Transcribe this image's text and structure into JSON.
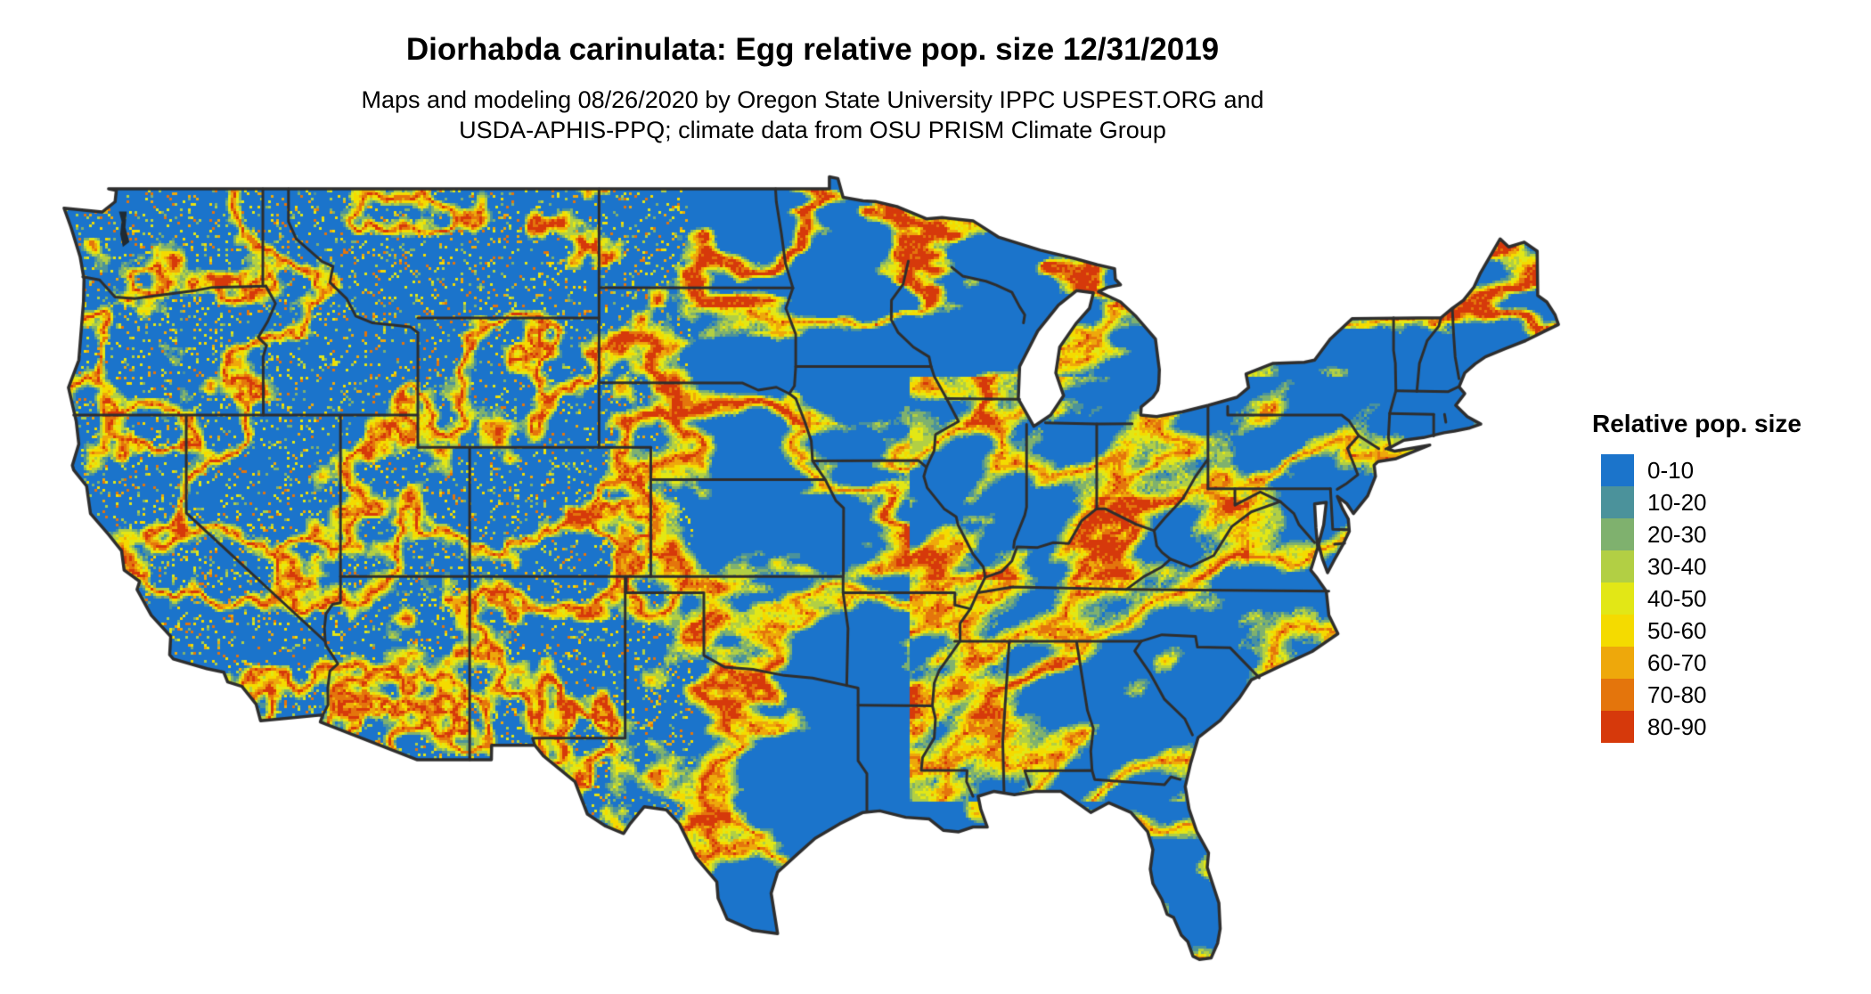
{
  "title": "Diorhabda carinulata: Egg relative pop. size 12/31/2019",
  "subtitle_line1": "Maps and modeling 08/26/2020 by Oregon State University IPPC USPEST.ORG and",
  "subtitle_line2": "USDA-APHIS-PPQ; climate data from OSU PRISM Climate Group",
  "legend": {
    "title": "Relative pop. size",
    "items": [
      {
        "label": "0-10",
        "color": "#1B74CB"
      },
      {
        "label": "10-20",
        "color": "#4B929B"
      },
      {
        "label": "20-30",
        "color": "#7FB16E"
      },
      {
        "label": "30-40",
        "color": "#B2CF44"
      },
      {
        "label": "40-50",
        "color": "#E2E716"
      },
      {
        "label": "50-60",
        "color": "#F4DB00"
      },
      {
        "label": "60-70",
        "color": "#EEA80B"
      },
      {
        "label": "70-80",
        "color": "#E4750C"
      },
      {
        "label": "80-90",
        "color": "#D6390B"
      }
    ]
  },
  "map": {
    "region": "Conterminous United States",
    "variable": "Egg relative population size",
    "base_color": "#1B74CB",
    "border_color": "#2E2E2E",
    "water_color": "#1F2A33",
    "background": "#FFFFFF"
  }
}
